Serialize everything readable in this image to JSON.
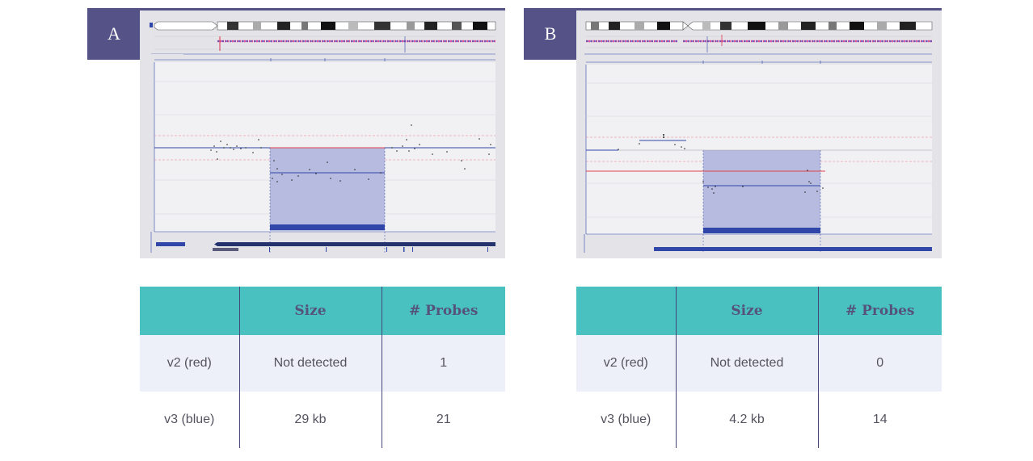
{
  "panels": [
    {
      "label": "A",
      "table": {
        "headers": [
          "",
          "Size",
          "# Probes"
        ],
        "rows": [
          {
            "name": "v2 (red)",
            "size": "Not detected",
            "probes": "1"
          },
          {
            "name": "v3 (blue)",
            "size": "29 kb",
            "probes": "21"
          }
        ]
      }
    },
    {
      "label": "B",
      "table": {
        "headers": [
          "",
          "Size",
          "# Probes"
        ],
        "rows": [
          {
            "name": "v2 (red)",
            "size": "Not detected",
            "probes": "0"
          },
          {
            "name": "v3 (blue)",
            "size": "4.2 kb",
            "probes": "14"
          }
        ]
      }
    }
  ],
  "colors": {
    "panel_label_bg": "#545286",
    "table_header_bg": "#49c1c1",
    "table_header_text": "#55537d",
    "row_alt_bg": "#eef0f9",
    "v2_line": "#e0404a",
    "v3_line": "#3046a8",
    "region_fill": "#b7bbe0"
  }
}
